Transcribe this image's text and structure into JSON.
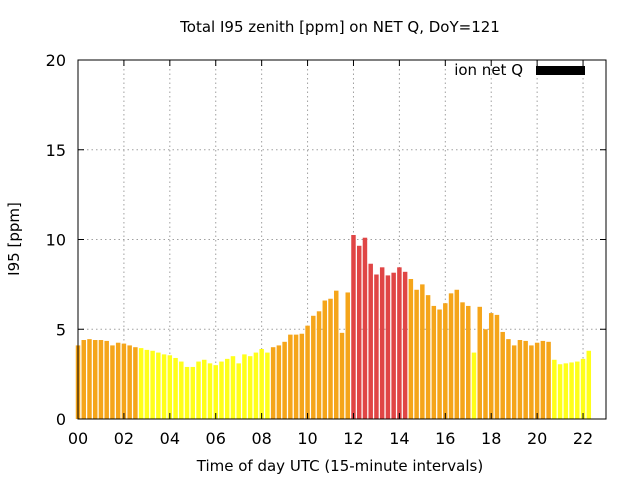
{
  "chart_data": {
    "type": "bar",
    "title": "Total I95 zenith [ppm] on NET Q, DoY=121",
    "xlabel": "Time of day UTC (15-minute intervals)",
    "ylabel": "I95 [ppm]",
    "xlim": [
      0,
      23
    ],
    "ylim": [
      0,
      20
    ],
    "x_ticks": [
      "00",
      "02",
      "04",
      "06",
      "08",
      "10",
      "12",
      "14",
      "16",
      "18",
      "20",
      "22"
    ],
    "y_ticks": [
      "0",
      "5",
      "10",
      "15",
      "20"
    ],
    "grid": true,
    "legend_position": "top-right",
    "series": [
      {
        "name": "ion net Q",
        "legend_color": "#000000",
        "values": [
          4.1,
          4.4,
          4.45,
          4.4,
          4.4,
          4.35,
          4.1,
          4.25,
          4.2,
          4.1,
          4.0,
          3.95,
          3.85,
          3.8,
          3.7,
          3.6,
          3.55,
          3.4,
          3.2,
          2.9,
          2.9,
          3.2,
          3.3,
          3.1,
          3.0,
          3.2,
          3.35,
          3.5,
          3.1,
          3.6,
          3.5,
          3.7,
          3.9,
          3.7,
          4.0,
          4.1,
          4.3,
          4.7,
          4.7,
          4.75,
          5.2,
          5.75,
          6.0,
          6.6,
          6.7,
          7.15,
          4.8,
          7.05,
          10.25,
          9.65,
          10.1,
          8.65,
          8.05,
          8.45,
          8.0,
          8.15,
          8.45,
          8.2,
          7.8,
          7.2,
          7.5,
          6.9,
          6.3,
          6.1,
          6.45,
          7.0,
          7.2,
          6.5,
          6.3,
          3.7,
          6.25,
          5.0,
          5.9,
          5.8,
          4.85,
          4.45,
          4.1,
          4.4,
          4.35,
          4.1,
          4.25,
          4.35,
          4.3,
          3.3,
          3.05,
          3.1,
          3.15,
          3.2,
          3.35,
          3.8
        ]
      }
    ],
    "color_thresholds": [
      {
        "min": 0,
        "max": 4,
        "color": "#ffff1a"
      },
      {
        "min": 4,
        "max": 8,
        "color": "#f5a51a"
      },
      {
        "min": 8,
        "max": 100,
        "color": "#e04545"
      }
    ]
  }
}
